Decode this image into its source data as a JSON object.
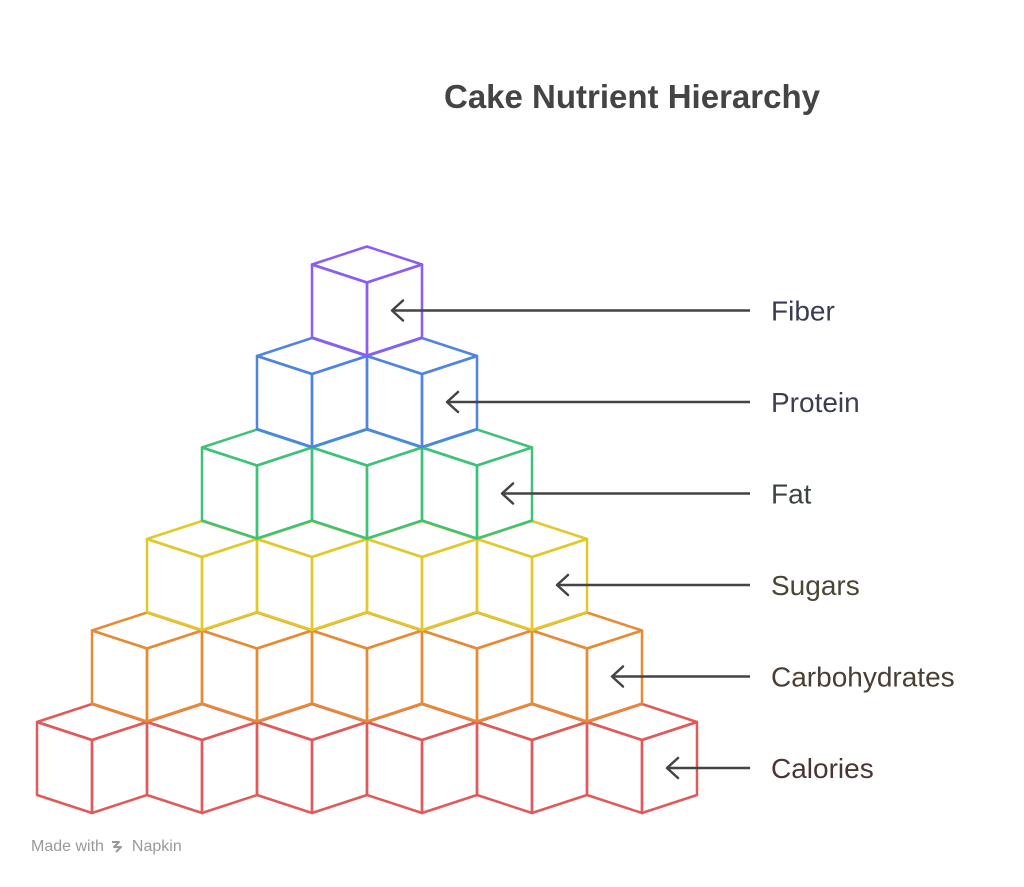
{
  "title": "Cake Nutrient Hierarchy",
  "levels": [
    {
      "label": "Fiber",
      "blocks": 1,
      "color": "#8b5cf6",
      "text_color": "#3b3b55"
    },
    {
      "label": "Protein",
      "blocks": 2,
      "color": "#4f84e0",
      "text_color": "#3b3f50"
    },
    {
      "label": "Fat",
      "blocks": 3,
      "color": "#3ec27a",
      "text_color": "#3b453e"
    },
    {
      "label": "Sugars",
      "blocks": 4,
      "color": "#e3c82c",
      "text_color": "#4a4535"
    },
    {
      "label": "Carbohydrates",
      "blocks": 5,
      "color": "#e68a35",
      "text_color": "#4a3e33"
    },
    {
      "label": "Calories",
      "blocks": 6,
      "color": "#e05a5a",
      "text_color": "#4a3533"
    }
  ],
  "arrow_color": "#444444",
  "footer": {
    "prefix": "Made with",
    "brand": "Napkin",
    "brand_icon": "napkin-logo-icon"
  }
}
